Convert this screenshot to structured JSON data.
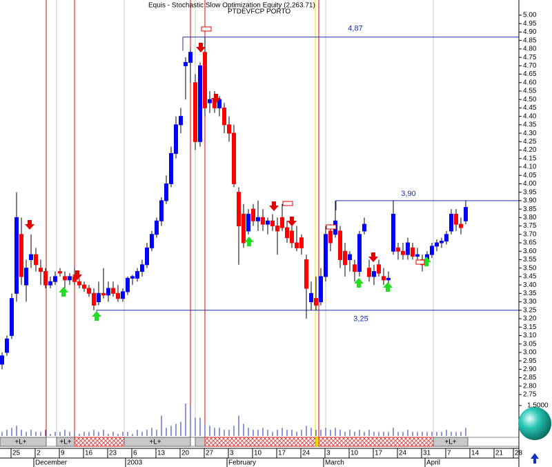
{
  "chart_data": {
    "type": "candlestick",
    "title": "Equis - Stochastic Slow Optimization Equity (2,263.71)",
    "subtitle": "PTDEVFCP PORTO",
    "categories": [
      null,
      null,
      null,
      "25",
      null,
      null,
      null,
      null,
      "2",
      null,
      null,
      null,
      null,
      "9",
      null,
      null,
      null,
      null,
      "16",
      null,
      null,
      null,
      null,
      "23",
      null,
      null,
      null,
      null,
      "6",
      null,
      null,
      null,
      null,
      "13",
      null,
      null,
      null,
      null,
      "20",
      null,
      null,
      null,
      null,
      "27",
      null,
      null,
      null,
      null,
      "3",
      null,
      null,
      null,
      null,
      "10",
      null,
      null,
      null,
      null,
      "17",
      null,
      null,
      null,
      null,
      "24",
      null,
      null,
      null,
      null,
      "3",
      null,
      null,
      null,
      null,
      "10",
      null,
      null,
      null,
      null,
      "17",
      null,
      null,
      null,
      null,
      "24",
      null,
      null,
      null,
      null,
      "31",
      null,
      null,
      null,
      null,
      "7",
      null,
      null,
      null,
      null,
      "14",
      null,
      null,
      null,
      null,
      "21",
      null,
      null,
      null,
      "28"
    ],
    "months": [
      null,
      null,
      null,
      null,
      null,
      null,
      null,
      "December",
      null,
      null,
      null,
      null,
      null,
      null,
      null,
      null,
      null,
      null,
      null,
      null,
      null,
      null,
      null,
      null,
      null,
      null,
      "2003",
      null,
      null,
      null,
      null,
      null,
      null,
      null,
      null,
      null,
      null,
      null,
      null,
      null,
      null,
      null,
      null,
      null,
      null,
      null,
      null,
      "February",
      null,
      null,
      null,
      null,
      null,
      null,
      null,
      null,
      null,
      null,
      null,
      null,
      null,
      null,
      null,
      null,
      null,
      null,
      null,
      "March",
      null,
      null,
      null,
      null,
      null,
      null,
      null,
      null,
      null,
      null,
      null,
      null,
      null,
      null,
      null,
      null,
      null,
      null,
      null,
      null,
      "April",
      null,
      null,
      null,
      null,
      null,
      null,
      null,
      null,
      null,
      null,
      null,
      null,
      null,
      null,
      null,
      null,
      null,
      null,
      null
    ],
    "open": [
      2.93,
      3.0,
      3.1,
      3.35,
      3.7,
      3.4,
      3.55,
      3.58,
      3.5,
      3.48,
      3.4,
      3.42,
      3.48,
      3.45,
      3.43,
      3.45,
      3.42,
      3.4,
      3.38,
      3.35,
      3.3,
      3.35,
      3.34,
      3.38,
      3.35,
      3.32,
      3.36,
      3.44,
      3.44,
      3.48,
      3.52,
      3.62,
      3.7,
      3.78,
      3.9,
      4.0,
      4.18,
      4.35,
      4.7,
      4.72,
      4.6,
      4.25,
      4.78,
      4.48,
      4.5,
      4.45,
      4.45,
      4.35,
      4.3,
      3.95,
      3.82,
      3.72,
      3.85,
      3.78,
      3.8,
      3.76,
      3.78,
      3.75,
      3.8,
      3.74,
      3.72,
      3.65,
      3.68,
      3.55,
      3.3,
      3.32,
      3.3,
      3.45,
      3.72,
      3.7,
      3.72,
      3.6,
      3.55,
      3.52,
      3.48,
      3.72,
      3.5,
      3.45,
      3.52,
      3.45,
      3.43,
      3.6,
      3.62,
      3.6,
      3.58,
      3.62,
      3.57,
      3.55,
      3.55,
      3.58,
      3.63,
      3.65,
      3.66,
      3.72,
      3.82,
      3.76,
      3.78,
      null,
      null,
      null,
      null,
      null,
      null,
      null,
      null,
      null,
      null,
      null
    ],
    "high": [
      3.0,
      3.1,
      3.35,
      3.95,
      3.8,
      3.55,
      3.7,
      3.62,
      3.55,
      3.5,
      3.45,
      3.48,
      3.5,
      3.48,
      3.47,
      3.5,
      3.44,
      3.42,
      3.4,
      3.38,
      3.42,
      3.5,
      3.42,
      3.42,
      3.4,
      3.38,
      3.45,
      3.46,
      3.5,
      3.55,
      3.65,
      3.72,
      3.8,
      3.92,
      4.05,
      4.22,
      4.4,
      4.45,
      4.75,
      4.8,
      4.65,
      4.72,
      4.87,
      4.55,
      4.55,
      4.52,
      4.48,
      4.4,
      4.35,
      3.98,
      3.88,
      3.85,
      3.88,
      3.9,
      3.85,
      3.8,
      3.82,
      3.8,
      3.88,
      3.78,
      3.75,
      3.75,
      3.7,
      3.58,
      3.42,
      3.45,
      3.5,
      3.75,
      3.76,
      3.9,
      3.75,
      3.65,
      3.6,
      3.55,
      3.72,
      3.8,
      3.55,
      3.52,
      3.55,
      3.5,
      3.48,
      3.9,
      3.65,
      3.65,
      3.68,
      3.65,
      3.62,
      3.58,
      3.6,
      3.65,
      3.67,
      3.68,
      3.72,
      3.85,
      3.85,
      3.8,
      3.9,
      null,
      null,
      null,
      null,
      null,
      null,
      null,
      null,
      null,
      null,
      null
    ],
    "low": [
      2.9,
      2.98,
      3.08,
      3.3,
      3.4,
      3.3,
      3.5,
      3.48,
      3.4,
      3.38,
      3.38,
      3.4,
      3.45,
      3.38,
      3.4,
      3.4,
      3.38,
      3.36,
      3.33,
      3.25,
      3.28,
      3.32,
      3.3,
      3.33,
      3.3,
      3.3,
      3.34,
      3.4,
      3.42,
      3.45,
      3.5,
      3.6,
      3.68,
      3.75,
      3.88,
      3.98,
      4.15,
      4.3,
      4.5,
      4.6,
      4.2,
      4.22,
      4.4,
      4.42,
      4.42,
      4.4,
      4.3,
      4.25,
      3.98,
      3.52,
      3.62,
      3.7,
      3.75,
      3.72,
      3.72,
      3.7,
      3.72,
      3.58,
      3.72,
      3.65,
      3.62,
      3.6,
      3.58,
      3.2,
      3.25,
      3.25,
      3.28,
      3.42,
      3.6,
      3.68,
      3.5,
      3.45,
      3.48,
      3.42,
      3.45,
      3.7,
      3.42,
      3.4,
      3.45,
      3.4,
      3.38,
      3.58,
      3.55,
      3.55,
      3.55,
      3.55,
      3.53,
      3.48,
      3.52,
      3.56,
      3.6,
      3.62,
      3.64,
      3.7,
      3.72,
      3.7,
      3.76,
      null,
      null,
      null,
      null,
      null,
      null,
      null,
      null,
      null,
      null,
      null
    ],
    "close": [
      2.98,
      3.08,
      3.32,
      3.8,
      3.45,
      3.5,
      3.58,
      3.52,
      3.48,
      3.4,
      3.42,
      3.45,
      3.47,
      3.43,
      3.45,
      3.42,
      3.4,
      3.38,
      3.35,
      3.28,
      3.35,
      3.34,
      3.38,
      3.35,
      3.32,
      3.36,
      3.44,
      3.45,
      3.48,
      3.52,
      3.62,
      3.7,
      3.78,
      3.9,
      4.0,
      4.18,
      4.35,
      4.4,
      4.72,
      4.78,
      4.25,
      4.7,
      4.45,
      4.5,
      4.45,
      4.5,
      4.35,
      4.3,
      4.0,
      3.75,
      3.65,
      3.82,
      3.78,
      3.8,
      3.76,
      3.78,
      3.75,
      3.72,
      3.74,
      3.68,
      3.65,
      3.62,
      3.62,
      3.38,
      3.35,
      3.28,
      3.45,
      3.7,
      3.65,
      3.78,
      3.55,
      3.52,
      3.58,
      3.48,
      3.7,
      3.76,
      3.45,
      3.48,
      3.47,
      3.43,
      3.44,
      3.82,
      3.6,
      3.58,
      3.65,
      3.57,
      3.58,
      3.52,
      3.58,
      3.63,
      3.65,
      3.66,
      3.7,
      3.82,
      3.76,
      3.74,
      3.86,
      null,
      null,
      null,
      null,
      null,
      null,
      null,
      null,
      null,
      null,
      null
    ],
    "volume": [
      0.2,
      0.3,
      0.4,
      0.5,
      0.3,
      0.2,
      0.3,
      0.2,
      0.2,
      0.3,
      0.1,
      0.2,
      0.2,
      0.3,
      0.2,
      0.2,
      0.1,
      0.2,
      0.2,
      0.3,
      0.2,
      0.3,
      0.1,
      0.2,
      0.1,
      0.2,
      0.2,
      0.1,
      0.3,
      0.2,
      0.3,
      0.4,
      0.3,
      1.0,
      0.4,
      0.5,
      0.6,
      0.7,
      1.6,
      1.5,
      0.9,
      0.9,
      0.6,
      0.5,
      0.4,
      0.4,
      0.3,
      0.3,
      0.5,
      1.0,
      0.6,
      0.4,
      0.3,
      0.3,
      0.4,
      0.3,
      0.2,
      0.3,
      0.4,
      0.3,
      0.3,
      0.2,
      0.3,
      0.5,
      0.4,
      0.3,
      0.3,
      0.4,
      0.3,
      0.4,
      0.3,
      0.2,
      0.3,
      0.2,
      0.3,
      0.2,
      0.3,
      0.2,
      0.2,
      0.2,
      0.2,
      0.4,
      0.2,
      0.2,
      0.3,
      0.2,
      0.2,
      0.2,
      0.2,
      0.2,
      0.2,
      0.2,
      0.3,
      0.2,
      0.2,
      0.2,
      0.4,
      null,
      null,
      null,
      null,
      null,
      null,
      null,
      null,
      null,
      null,
      null
    ],
    "up_color": "#0000ff",
    "down_color": "#ff0000",
    "ylim": [
      2.75,
      5.0
    ],
    "yticks": [
      {
        "value": 5.0,
        "label": "5.00"
      },
      {
        "value": 4.95,
        "label": "4.95"
      },
      {
        "value": 4.9,
        "label": "4.90"
      },
      {
        "value": 4.85,
        "label": "4.85"
      },
      {
        "value": 4.8,
        "label": "4.80"
      },
      {
        "value": 4.75,
        "label": "4.75"
      },
      {
        "value": 4.7,
        "label": "4.70"
      },
      {
        "value": 4.65,
        "label": "4.65"
      },
      {
        "value": 4.6,
        "label": "4.60"
      },
      {
        "value": 4.55,
        "label": "4.55"
      },
      {
        "value": 4.5,
        "label": "4.50"
      },
      {
        "value": 4.45,
        "label": "4.45"
      },
      {
        "value": 4.4,
        "label": "4.40"
      },
      {
        "value": 4.35,
        "label": "4.35"
      },
      {
        "value": 4.3,
        "label": "4.30"
      },
      {
        "value": 4.25,
        "label": "4.25"
      },
      {
        "value": 4.2,
        "label": "4.20"
      },
      {
        "value": 4.15,
        "label": "4.15"
      },
      {
        "value": 4.1,
        "label": "4.10"
      },
      {
        "value": 4.05,
        "label": "4.05"
      },
      {
        "value": 4.0,
        "label": "4.00"
      },
      {
        "value": 3.95,
        "label": "3.95"
      },
      {
        "value": 3.9,
        "label": "3.90"
      },
      {
        "value": 3.85,
        "label": "3.85"
      },
      {
        "value": 3.8,
        "label": "3.80"
      },
      {
        "value": 3.75,
        "label": "3.75"
      },
      {
        "value": 3.7,
        "label": "3.70"
      },
      {
        "value": 3.65,
        "label": "3.65"
      },
      {
        "value": 3.6,
        "label": "3.60"
      },
      {
        "value": 3.55,
        "label": "3.55"
      },
      {
        "value": 3.5,
        "label": "3.50"
      },
      {
        "value": 3.45,
        "label": "3.45"
      },
      {
        "value": 3.4,
        "label": "3.40"
      },
      {
        "value": 3.35,
        "label": "3.35"
      },
      {
        "value": 3.3,
        "label": "3.30"
      },
      {
        "value": 3.25,
        "label": "3.25"
      },
      {
        "value": 3.2,
        "label": "3.20"
      },
      {
        "value": 3.15,
        "label": "3.15"
      },
      {
        "value": 3.1,
        "label": "3.10"
      },
      {
        "value": 3.05,
        "label": "3.05"
      },
      {
        "value": 3.0,
        "label": "3.00"
      },
      {
        "value": 2.95,
        "label": "2.95"
      },
      {
        "value": 2.9,
        "label": "2.90"
      },
      {
        "value": 2.85,
        "label": "2.85"
      },
      {
        "value": 2.8,
        "label": "2.80"
      },
      {
        "value": 2.75,
        "label": "2.75"
      }
    ],
    "volume_ylim": [
      0,
      1.7
    ],
    "volume_yticks": [
      {
        "value": 1.5,
        "label": "1.5000"
      }
    ],
    "levels": [
      {
        "value": 4.87,
        "label": "4,87"
      },
      {
        "value": 3.9,
        "label": "3,90"
      },
      {
        "value": 3.25,
        "label": "3,25"
      }
    ],
    "strip": [
      "+L+",
      "+L+",
      "+L+",
      "+L+"
    ]
  }
}
